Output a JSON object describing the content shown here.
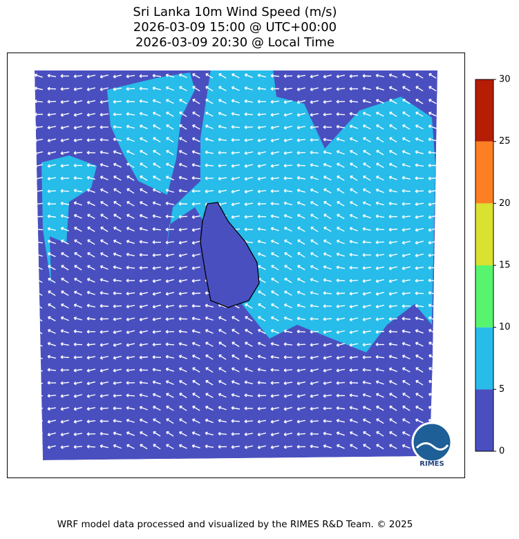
{
  "header": {
    "title_lines": [
      "Sri Lanka 10m Wind Speed (m/s)",
      "2026-03-09 15:00 @ UTC+00:00",
      "2026-03-09 20:30 @ Local Time"
    ]
  },
  "colorbar": {
    "bins": [
      0,
      5,
      10,
      15,
      20,
      25,
      30
    ],
    "colors": [
      "#4a4fbf",
      "#27bce9",
      "#57f56e",
      "#d9e131",
      "#fc7f23",
      "#b51d04"
    ],
    "ticks": [
      0,
      5,
      10,
      15,
      20,
      25,
      30
    ]
  },
  "logo": {
    "text": "RIMES"
  },
  "footer": {
    "text": "WRF model data processed and visualized by the RIMES R&D Team. © 2025"
  }
}
